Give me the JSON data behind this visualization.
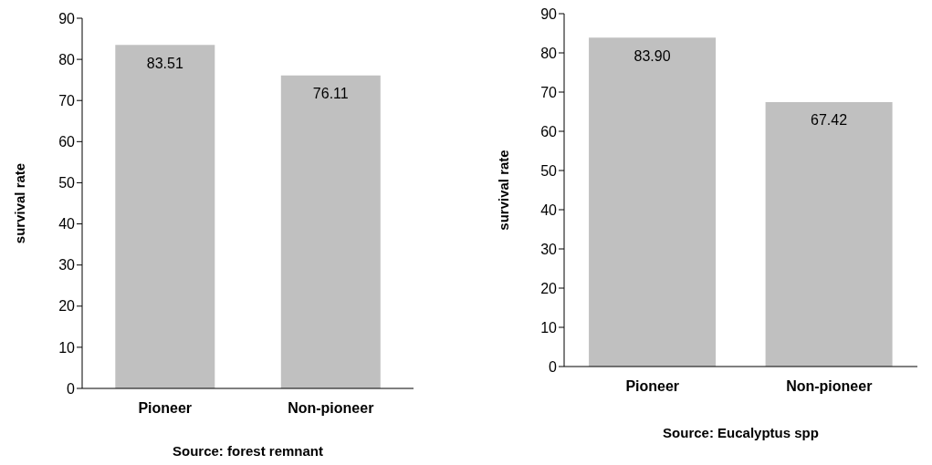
{
  "chart_data": [
    {
      "type": "bar",
      "categories": [
        "Pioneer",
        "Non-pioneer"
      ],
      "values": [
        83.51,
        76.11
      ],
      "value_labels": [
        "83.51",
        "76.11"
      ],
      "color": "#c0c0c0",
      "xlabel": "Source: forest remnant",
      "ylabel": "survival rate",
      "ylim": [
        0,
        90
      ],
      "yticks": [
        0,
        10,
        20,
        30,
        40,
        50,
        60,
        70,
        80,
        90
      ]
    },
    {
      "type": "bar",
      "categories": [
        "Pioneer",
        "Non-pioneer"
      ],
      "values": [
        83.9,
        67.42
      ],
      "value_labels": [
        "83.90",
        "67.42"
      ],
      "color": "#c0c0c0",
      "xlabel": "Source: Eucalyptus spp",
      "ylabel": "survival rate",
      "ylim": [
        0,
        90
      ],
      "yticks": [
        0,
        10,
        20,
        30,
        40,
        50,
        60,
        70,
        80,
        90
      ]
    }
  ]
}
